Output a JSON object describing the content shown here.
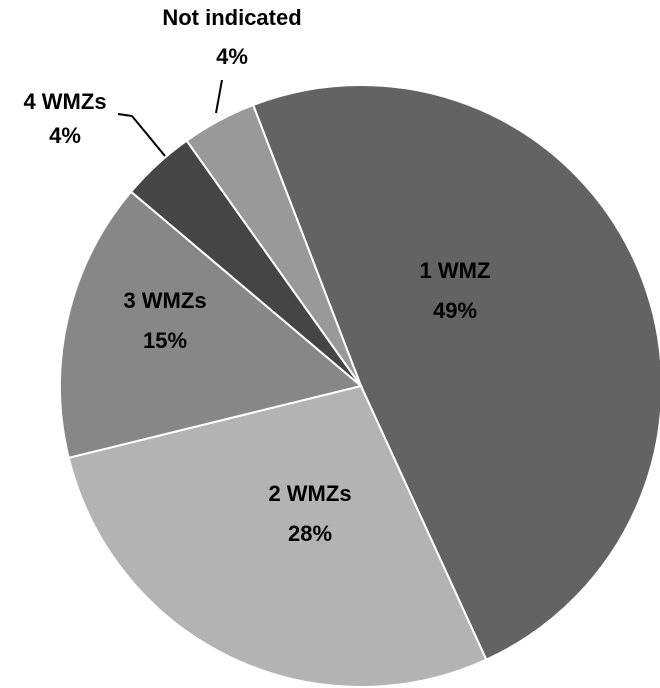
{
  "chart_data": {
    "type": "pie",
    "categories": [
      "1 WMZ",
      "2 WMZs",
      "3 WMZs",
      "4 WMZs",
      "Not indicated"
    ],
    "values": [
      49,
      28,
      15,
      4,
      4
    ],
    "value_labels": [
      "49%",
      "28%",
      "15%",
      "4%",
      "4%"
    ],
    "colors": [
      "#636363",
      "#b3b3b3",
      "#878787",
      "#454545",
      "#999999"
    ]
  }
}
